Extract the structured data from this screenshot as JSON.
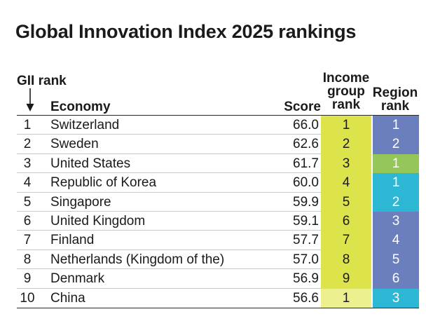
{
  "title": "Global Innovation Index 2025 rankings",
  "headers": {
    "gii_rank": "GII rank",
    "economy": "Economy",
    "score": "Score",
    "income_line1": "Income",
    "income_line2": "group",
    "income_line3": "rank",
    "region_line1": "Region",
    "region_line2": "rank"
  },
  "colors": {
    "income_high": "#dde34a",
    "income_upper_middle": "#edf08f",
    "region_europe": "#6b7fbf",
    "region_northern_america": "#94c65a",
    "region_se_asia_oceania": "#2cb8d4",
    "divider": "#c9c9c9"
  },
  "chart_data": {
    "type": "table",
    "title": "Global Innovation Index 2025 rankings",
    "columns": [
      "GII rank",
      "Economy",
      "Score",
      "Income group rank",
      "Region rank"
    ],
    "rows": [
      {
        "rank": "1",
        "economy": "Switzerland",
        "score": "66.0",
        "income_rank": "1",
        "region_rank": "1",
        "income_color": "#dde34a",
        "region_color": "#6b7fbf"
      },
      {
        "rank": "2",
        "economy": "Sweden",
        "score": "62.6",
        "income_rank": "2",
        "region_rank": "2",
        "income_color": "#dde34a",
        "region_color": "#6b7fbf"
      },
      {
        "rank": "3",
        "economy": "United States",
        "score": "61.7",
        "income_rank": "3",
        "region_rank": "1",
        "income_color": "#dde34a",
        "region_color": "#94c65a"
      },
      {
        "rank": "4",
        "economy": "Republic of Korea",
        "score": "60.0",
        "income_rank": "4",
        "region_rank": "1",
        "income_color": "#dde34a",
        "region_color": "#2cb8d4"
      },
      {
        "rank": "5",
        "economy": "Singapore",
        "score": "59.9",
        "income_rank": "5",
        "region_rank": "2",
        "income_color": "#dde34a",
        "region_color": "#2cb8d4"
      },
      {
        "rank": "6",
        "economy": "United Kingdom",
        "score": "59.1",
        "income_rank": "6",
        "region_rank": "3",
        "income_color": "#dde34a",
        "region_color": "#6b7fbf"
      },
      {
        "rank": "7",
        "economy": "Finland",
        "score": "57.7",
        "income_rank": "7",
        "region_rank": "4",
        "income_color": "#dde34a",
        "region_color": "#6b7fbf"
      },
      {
        "rank": "8",
        "economy": "Netherlands (Kingdom of the)",
        "score": "57.0",
        "income_rank": "8",
        "region_rank": "5",
        "income_color": "#dde34a",
        "region_color": "#6b7fbf"
      },
      {
        "rank": "9",
        "economy": "Denmark",
        "score": "56.9",
        "income_rank": "9",
        "region_rank": "6",
        "income_color": "#dde34a",
        "region_color": "#6b7fbf"
      },
      {
        "rank": "10",
        "economy": "China",
        "score": "56.6",
        "income_rank": "1",
        "region_rank": "3",
        "income_color": "#edf08f",
        "region_color": "#2cb8d4"
      }
    ]
  }
}
